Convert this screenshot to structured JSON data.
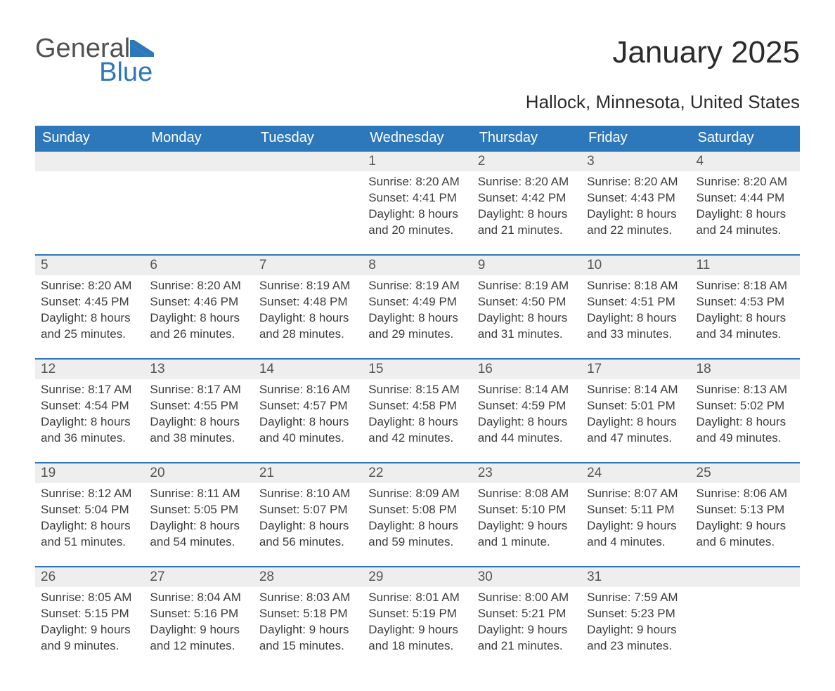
{
  "logo": {
    "general": "General",
    "blue": "Blue",
    "flag_color": "#2d77bb"
  },
  "title": "January 2025",
  "subtitle": "Hallock, Minnesota, United States",
  "colors": {
    "header_bg": "#2d77bb",
    "header_text": "#ffffff",
    "band_bg": "#eeeeee",
    "band_border": "#2d77bb",
    "body_text": "#3d3d3d",
    "page_bg": "#ffffff"
  },
  "typography": {
    "title_fontsize": 44,
    "subtitle_fontsize": 26,
    "dayheader_fontsize": 20,
    "daynum_fontsize": 19,
    "body_fontsize": 17
  },
  "day_headers": [
    "Sunday",
    "Monday",
    "Tuesday",
    "Wednesday",
    "Thursday",
    "Friday",
    "Saturday"
  ],
  "weeks": [
    [
      null,
      null,
      null,
      {
        "n": "1",
        "sr": "Sunrise: 8:20 AM",
        "ss": "Sunset: 4:41 PM",
        "dl1": "Daylight: 8 hours",
        "dl2": "and 20 minutes."
      },
      {
        "n": "2",
        "sr": "Sunrise: 8:20 AM",
        "ss": "Sunset: 4:42 PM",
        "dl1": "Daylight: 8 hours",
        "dl2": "and 21 minutes."
      },
      {
        "n": "3",
        "sr": "Sunrise: 8:20 AM",
        "ss": "Sunset: 4:43 PM",
        "dl1": "Daylight: 8 hours",
        "dl2": "and 22 minutes."
      },
      {
        "n": "4",
        "sr": "Sunrise: 8:20 AM",
        "ss": "Sunset: 4:44 PM",
        "dl1": "Daylight: 8 hours",
        "dl2": "and 24 minutes."
      }
    ],
    [
      {
        "n": "5",
        "sr": "Sunrise: 8:20 AM",
        "ss": "Sunset: 4:45 PM",
        "dl1": "Daylight: 8 hours",
        "dl2": "and 25 minutes."
      },
      {
        "n": "6",
        "sr": "Sunrise: 8:20 AM",
        "ss": "Sunset: 4:46 PM",
        "dl1": "Daylight: 8 hours",
        "dl2": "and 26 minutes."
      },
      {
        "n": "7",
        "sr": "Sunrise: 8:19 AM",
        "ss": "Sunset: 4:48 PM",
        "dl1": "Daylight: 8 hours",
        "dl2": "and 28 minutes."
      },
      {
        "n": "8",
        "sr": "Sunrise: 8:19 AM",
        "ss": "Sunset: 4:49 PM",
        "dl1": "Daylight: 8 hours",
        "dl2": "and 29 minutes."
      },
      {
        "n": "9",
        "sr": "Sunrise: 8:19 AM",
        "ss": "Sunset: 4:50 PM",
        "dl1": "Daylight: 8 hours",
        "dl2": "and 31 minutes."
      },
      {
        "n": "10",
        "sr": "Sunrise: 8:18 AM",
        "ss": "Sunset: 4:51 PM",
        "dl1": "Daylight: 8 hours",
        "dl2": "and 33 minutes."
      },
      {
        "n": "11",
        "sr": "Sunrise: 8:18 AM",
        "ss": "Sunset: 4:53 PM",
        "dl1": "Daylight: 8 hours",
        "dl2": "and 34 minutes."
      }
    ],
    [
      {
        "n": "12",
        "sr": "Sunrise: 8:17 AM",
        "ss": "Sunset: 4:54 PM",
        "dl1": "Daylight: 8 hours",
        "dl2": "and 36 minutes."
      },
      {
        "n": "13",
        "sr": "Sunrise: 8:17 AM",
        "ss": "Sunset: 4:55 PM",
        "dl1": "Daylight: 8 hours",
        "dl2": "and 38 minutes."
      },
      {
        "n": "14",
        "sr": "Sunrise: 8:16 AM",
        "ss": "Sunset: 4:57 PM",
        "dl1": "Daylight: 8 hours",
        "dl2": "and 40 minutes."
      },
      {
        "n": "15",
        "sr": "Sunrise: 8:15 AM",
        "ss": "Sunset: 4:58 PM",
        "dl1": "Daylight: 8 hours",
        "dl2": "and 42 minutes."
      },
      {
        "n": "16",
        "sr": "Sunrise: 8:14 AM",
        "ss": "Sunset: 4:59 PM",
        "dl1": "Daylight: 8 hours",
        "dl2": "and 44 minutes."
      },
      {
        "n": "17",
        "sr": "Sunrise: 8:14 AM",
        "ss": "Sunset: 5:01 PM",
        "dl1": "Daylight: 8 hours",
        "dl2": "and 47 minutes."
      },
      {
        "n": "18",
        "sr": "Sunrise: 8:13 AM",
        "ss": "Sunset: 5:02 PM",
        "dl1": "Daylight: 8 hours",
        "dl2": "and 49 minutes."
      }
    ],
    [
      {
        "n": "19",
        "sr": "Sunrise: 8:12 AM",
        "ss": "Sunset: 5:04 PM",
        "dl1": "Daylight: 8 hours",
        "dl2": "and 51 minutes."
      },
      {
        "n": "20",
        "sr": "Sunrise: 8:11 AM",
        "ss": "Sunset: 5:05 PM",
        "dl1": "Daylight: 8 hours",
        "dl2": "and 54 minutes."
      },
      {
        "n": "21",
        "sr": "Sunrise: 8:10 AM",
        "ss": "Sunset: 5:07 PM",
        "dl1": "Daylight: 8 hours",
        "dl2": "and 56 minutes."
      },
      {
        "n": "22",
        "sr": "Sunrise: 8:09 AM",
        "ss": "Sunset: 5:08 PM",
        "dl1": "Daylight: 8 hours",
        "dl2": "and 59 minutes."
      },
      {
        "n": "23",
        "sr": "Sunrise: 8:08 AM",
        "ss": "Sunset: 5:10 PM",
        "dl1": "Daylight: 9 hours",
        "dl2": "and 1 minute."
      },
      {
        "n": "24",
        "sr": "Sunrise: 8:07 AM",
        "ss": "Sunset: 5:11 PM",
        "dl1": "Daylight: 9 hours",
        "dl2": "and 4 minutes."
      },
      {
        "n": "25",
        "sr": "Sunrise: 8:06 AM",
        "ss": "Sunset: 5:13 PM",
        "dl1": "Daylight: 9 hours",
        "dl2": "and 6 minutes."
      }
    ],
    [
      {
        "n": "26",
        "sr": "Sunrise: 8:05 AM",
        "ss": "Sunset: 5:15 PM",
        "dl1": "Daylight: 9 hours",
        "dl2": "and 9 minutes."
      },
      {
        "n": "27",
        "sr": "Sunrise: 8:04 AM",
        "ss": "Sunset: 5:16 PM",
        "dl1": "Daylight: 9 hours",
        "dl2": "and 12 minutes."
      },
      {
        "n": "28",
        "sr": "Sunrise: 8:03 AM",
        "ss": "Sunset: 5:18 PM",
        "dl1": "Daylight: 9 hours",
        "dl2": "and 15 minutes."
      },
      {
        "n": "29",
        "sr": "Sunrise: 8:01 AM",
        "ss": "Sunset: 5:19 PM",
        "dl1": "Daylight: 9 hours",
        "dl2": "and 18 minutes."
      },
      {
        "n": "30",
        "sr": "Sunrise: 8:00 AM",
        "ss": "Sunset: 5:21 PM",
        "dl1": "Daylight: 9 hours",
        "dl2": "and 21 minutes."
      },
      {
        "n": "31",
        "sr": "Sunrise: 7:59 AM",
        "ss": "Sunset: 5:23 PM",
        "dl1": "Daylight: 9 hours",
        "dl2": "and 23 minutes."
      },
      null
    ]
  ]
}
